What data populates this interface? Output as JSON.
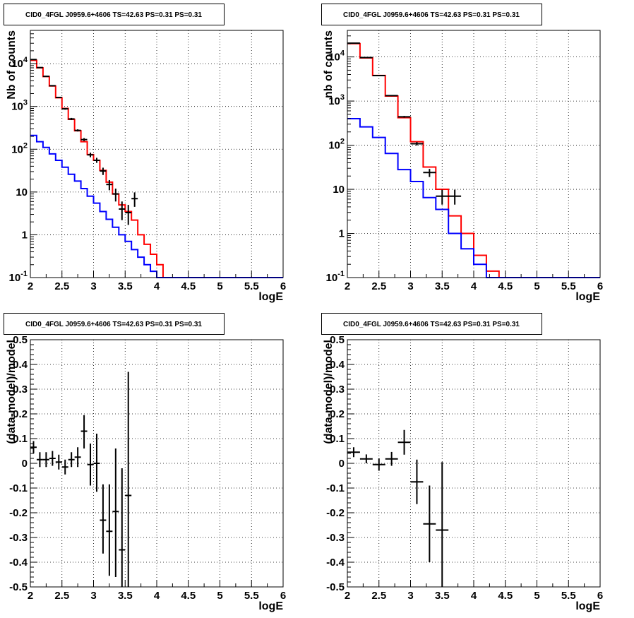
{
  "page": {
    "title_label": "CID0_4FGL J0959.6+4606 TS=42.63 PS=0.31 PS=0.31"
  },
  "colors": {
    "data": "#000000",
    "model": "#ff0000",
    "background_model": "#0000ff",
    "grid": "#000000"
  },
  "chart_data": [
    {
      "type": "line",
      "title": "CID0_4FGL J0959.6+4606 TS=42.63 PS=0.31 PS=0.31",
      "xlabel": "logE",
      "ylabel": "Nb of counts",
      "xlim": [
        2,
        6
      ],
      "ylim": [
        0.1,
        60000
      ],
      "yscale": "log",
      "grid": true,
      "x_ticks": [
        "2",
        "2.5",
        "3",
        "3.5",
        "4",
        "4.5",
        "5",
        "5.5",
        "6"
      ],
      "y_ticks": [
        "10^-1",
        "1",
        "10",
        "10^2",
        "10^3",
        "10^4"
      ],
      "bin_edges": [
        2,
        2.1,
        2.2,
        2.3,
        2.4,
        2.5,
        2.6,
        2.7,
        2.8,
        2.9,
        3.0,
        3.1,
        3.2,
        3.3,
        3.4,
        3.5,
        3.6,
        3.7,
        3.8,
        3.9,
        4.0,
        4.1,
        4.2,
        4.3,
        4.4,
        4.5,
        4.6,
        4.7,
        4.8,
        4.9,
        5.0,
        5.1,
        5.2,
        5.3,
        5.4,
        5.5,
        5.6,
        5.7,
        5.8,
        5.9,
        6.0
      ],
      "series": [
        {
          "style": "step",
          "color": "#ff0000",
          "values": [
            12000,
            8000,
            5000,
            3000,
            1600,
            900,
            500,
            270,
            150,
            75,
            55,
            32,
            17,
            9,
            5,
            3.5,
            2.2,
            1.0,
            0.6,
            0.35,
            0.2,
            0.1,
            0.1,
            0.1,
            0.1,
            0.1,
            0.1,
            0.1,
            0.1,
            0.1,
            0.1,
            0.1,
            0.1,
            0.1,
            0.1,
            0.1,
            0.1,
            0.1,
            0.1,
            0.1
          ]
        },
        {
          "style": "step",
          "color": "#0000ff",
          "values": [
            210,
            150,
            110,
            78,
            55,
            38,
            26,
            18,
            12,
            8,
            5.5,
            3.5,
            2.3,
            1.5,
            1.0,
            0.7,
            0.45,
            0.3,
            0.2,
            0.14,
            0.1,
            0.1,
            0.1,
            0.1,
            0.1,
            0.1,
            0.1,
            0.1,
            0.1,
            0.1,
            0.1,
            0.1,
            0.1,
            0.1,
            0.1,
            0.1,
            0.1,
            0.1,
            0.1,
            0.1
          ]
        },
        {
          "style": "points",
          "color": "#000000",
          "points": [
            {
              "x": 2.05,
              "y": 12500,
              "ylo": 12300,
              "yhi": 12700
            },
            {
              "x": 2.15,
              "y": 8100,
              "ylo": 7900,
              "yhi": 8300
            },
            {
              "x": 2.25,
              "y": 5050,
              "ylo": 4900,
              "yhi": 5200
            },
            {
              "x": 2.35,
              "y": 3050,
              "ylo": 2950,
              "yhi": 3150
            },
            {
              "x": 2.45,
              "y": 1620,
              "ylo": 1560,
              "yhi": 1680
            },
            {
              "x": 2.55,
              "y": 880,
              "ylo": 840,
              "yhi": 920
            },
            {
              "x": 2.65,
              "y": 510,
              "ylo": 480,
              "yhi": 540
            },
            {
              "x": 2.75,
              "y": 275,
              "ylo": 260,
              "yhi": 292
            },
            {
              "x": 2.85,
              "y": 168,
              "ylo": 155,
              "yhi": 182
            },
            {
              "x": 2.95,
              "y": 74,
              "ylo": 65,
              "yhi": 83
            },
            {
              "x": 3.05,
              "y": 55,
              "ylo": 48,
              "yhi": 63
            },
            {
              "x": 3.15,
              "y": 31,
              "ylo": 25,
              "yhi": 37
            },
            {
              "x": 3.25,
              "y": 15,
              "ylo": 11,
              "yhi": 19
            },
            {
              "x": 3.35,
              "y": 9,
              "ylo": 6,
              "yhi": 12
            },
            {
              "x": 3.45,
              "y": 4,
              "ylo": 2.2,
              "yhi": 6
            },
            {
              "x": 3.55,
              "y": 3.3,
              "ylo": 1.7,
              "yhi": 5
            },
            {
              "x": 3.65,
              "y": 7,
              "ylo": 4.5,
              "yhi": 9.8
            }
          ]
        }
      ]
    },
    {
      "type": "line",
      "title": "CID0_4FGL J0959.6+4606 TS=42.63 PS=0.31 PS=0.31",
      "xlabel": "logE",
      "ylabel": "nb of counts",
      "xlim": [
        2,
        6
      ],
      "ylim": [
        0.1,
        40000
      ],
      "yscale": "log",
      "grid": true,
      "x_ticks": [
        "2",
        "2.5",
        "3",
        "3.5",
        "4",
        "4.5",
        "5",
        "5.5",
        "6"
      ],
      "y_ticks": [
        "10^-1",
        "1",
        "10",
        "10^2",
        "10^3",
        "10^4"
      ],
      "bin_edges": [
        2,
        2.2,
        2.4,
        2.6,
        2.8,
        3.0,
        3.2,
        3.4,
        3.6,
        3.8,
        4.0,
        4.2,
        4.4,
        4.6,
        4.8,
        5.0,
        5.2,
        5.4,
        5.6,
        5.8,
        6.0
      ],
      "series": [
        {
          "style": "step",
          "color": "#ff0000",
          "values": [
            20000,
            9500,
            3800,
            1300,
            420,
            120,
            32,
            10,
            2.5,
            1.0,
            0.32,
            0.14,
            0.1,
            0.1,
            0.1,
            0.1,
            0.1,
            0.1,
            0.1,
            0.1
          ]
        },
        {
          "style": "step",
          "color": "#0000ff",
          "values": [
            400,
            260,
            150,
            65,
            28,
            15,
            6.5,
            3.5,
            1.0,
            0.45,
            0.2,
            0.1,
            0.1,
            0.1,
            0.1,
            0.1,
            0.1,
            0.1,
            0.1,
            0.1
          ]
        },
        {
          "style": "points",
          "color": "#000000",
          "points": [
            {
              "x": 2.1,
              "y": 20500,
              "ylo": 20300,
              "yhi": 20700
            },
            {
              "x": 2.3,
              "y": 9700,
              "ylo": 9550,
              "yhi": 9850
            },
            {
              "x": 2.5,
              "y": 3780,
              "ylo": 3700,
              "yhi": 3860
            },
            {
              "x": 2.7,
              "y": 1330,
              "ylo": 1290,
              "yhi": 1370
            },
            {
              "x": 2.9,
              "y": 440,
              "ylo": 420,
              "yhi": 460
            },
            {
              "x": 3.1,
              "y": 108,
              "ylo": 98,
              "yhi": 118
            },
            {
              "x": 3.3,
              "y": 24,
              "ylo": 19,
              "yhi": 29
            },
            {
              "x": 3.5,
              "y": 7,
              "ylo": 4.5,
              "yhi": 9.8
            },
            {
              "x": 3.7,
              "y": 7,
              "ylo": 4.5,
              "yhi": 9.8
            }
          ]
        }
      ]
    },
    {
      "type": "scatter",
      "title": "CID0_4FGL J0959.6+4606 TS=42.63 PS=0.31 PS=0.31",
      "xlabel": "logE",
      "ylabel": "(data-model)/model",
      "xlim": [
        2,
        6
      ],
      "ylim": [
        -0.5,
        0.5
      ],
      "grid": true,
      "x_ticks": [
        "2",
        "2.5",
        "3",
        "3.5",
        "4",
        "4.5",
        "5",
        "5.5",
        "6"
      ],
      "y_ticks": [
        "-0.5",
        "-0.4",
        "-0.3",
        "-0.2",
        "-0.1",
        "0",
        "0.1",
        "0.2",
        "0.3",
        "0.4",
        "0.5"
      ],
      "series": [
        {
          "style": "points",
          "color": "#000000",
          "points": [
            {
              "x": 2.05,
              "y": 0.065,
              "ylo": 0.04,
              "yhi": 0.09
            },
            {
              "x": 2.15,
              "y": 0.015,
              "ylo": -0.015,
              "yhi": 0.045
            },
            {
              "x": 2.25,
              "y": 0.015,
              "ylo": -0.015,
              "yhi": 0.045
            },
            {
              "x": 2.35,
              "y": 0.02,
              "ylo": -0.01,
              "yhi": 0.05
            },
            {
              "x": 2.45,
              "y": 0.005,
              "ylo": -0.025,
              "yhi": 0.035
            },
            {
              "x": 2.55,
              "y": -0.015,
              "ylo": -0.045,
              "yhi": 0.015
            },
            {
              "x": 2.65,
              "y": 0.015,
              "ylo": -0.015,
              "yhi": 0.045
            },
            {
              "x": 2.75,
              "y": 0.025,
              "ylo": -0.015,
              "yhi": 0.065
            },
            {
              "x": 2.85,
              "y": 0.13,
              "ylo": 0.06,
              "yhi": 0.195
            },
            {
              "x": 2.95,
              "y": -0.005,
              "ylo": -0.09,
              "yhi": 0.08
            },
            {
              "x": 3.05,
              "y": 0.0,
              "ylo": -0.115,
              "yhi": 0.12
            },
            {
              "x": 3.15,
              "y": -0.23,
              "ylo": -0.365,
              "yhi": -0.085
            },
            {
              "x": 3.25,
              "y": -0.275,
              "ylo": -0.455,
              "yhi": -0.085
            },
            {
              "x": 3.35,
              "y": -0.195,
              "ylo": -0.46,
              "yhi": 0.06
            },
            {
              "x": 3.45,
              "y": -0.35,
              "ylo": -0.5,
              "yhi": -0.02
            },
            {
              "x": 3.55,
              "y": -0.13,
              "ylo": -0.5,
              "yhi": 0.37
            }
          ]
        }
      ]
    },
    {
      "type": "scatter",
      "title": "CID0_4FGL J0959.6+4606 TS=42.63 PS=0.31 PS=0.31",
      "xlabel": "logE",
      "ylabel": "(data-model)/model",
      "xlim": [
        2,
        6
      ],
      "ylim": [
        -0.5,
        0.5
      ],
      "grid": true,
      "x_ticks": [
        "2",
        "2.5",
        "3",
        "3.5",
        "4",
        "4.5",
        "5",
        "5.5",
        "6"
      ],
      "y_ticks": [
        "-0.5",
        "-0.4",
        "-0.3",
        "-0.2",
        "-0.1",
        "0",
        "0.1",
        "0.2",
        "0.3",
        "0.4",
        "0.5"
      ],
      "series": [
        {
          "style": "points",
          "color": "#000000",
          "points": [
            {
              "x": 2.1,
              "y": 0.045,
              "ylo": 0.025,
              "yhi": 0.065
            },
            {
              "x": 2.3,
              "y": 0.018,
              "ylo": 0.0,
              "yhi": 0.036
            },
            {
              "x": 2.5,
              "y": -0.005,
              "ylo": -0.03,
              "yhi": 0.02
            },
            {
              "x": 2.7,
              "y": 0.018,
              "ylo": -0.01,
              "yhi": 0.046
            },
            {
              "x": 2.9,
              "y": 0.085,
              "ylo": 0.035,
              "yhi": 0.135
            },
            {
              "x": 3.1,
              "y": -0.075,
              "ylo": -0.165,
              "yhi": 0.015
            },
            {
              "x": 3.3,
              "y": -0.245,
              "ylo": -0.4,
              "yhi": -0.09
            },
            {
              "x": 3.5,
              "y": -0.27,
              "ylo": -0.5,
              "yhi": 0.005
            }
          ]
        }
      ]
    }
  ]
}
